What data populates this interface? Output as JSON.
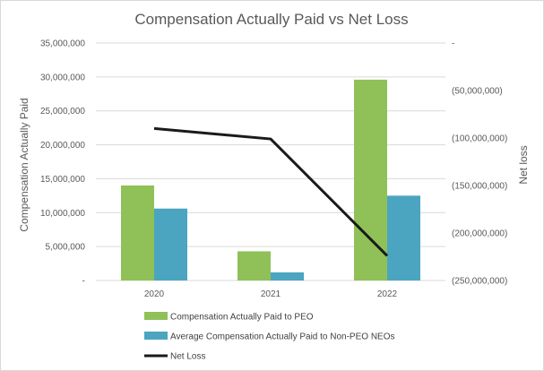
{
  "chart_data": {
    "type": "bar",
    "title": "Compensation Actually Paid vs Net Loss",
    "categories": [
      "2020",
      "2021",
      "2022"
    ],
    "series": [
      {
        "name": "Compensation Actually Paid to PEO",
        "axis": "left",
        "kind": "bar",
        "color": "#8fc158",
        "values": [
          14000000,
          4300000,
          29600000
        ]
      },
      {
        "name": "Average Compensation Actually Paid to Non-PEO NEOs",
        "axis": "left",
        "kind": "bar",
        "color": "#4ba5c0",
        "values": [
          10600000,
          1200000,
          12500000
        ]
      },
      {
        "name": "Net Loss",
        "axis": "right",
        "kind": "line",
        "color": "#1a1a1a",
        "values": [
          -90000000,
          -101000000,
          -224000000
        ]
      }
    ],
    "left_axis": {
      "label": "Compensation Actually Paid",
      "min": 0,
      "max": 35000000,
      "step": 5000000,
      "tick_labels": [
        "-",
        "5,000,000",
        "10,000,000",
        "15,000,000",
        "20,000,000",
        "25,000,000",
        "30,000,000",
        "35,000,000"
      ]
    },
    "right_axis": {
      "label": "Net loss",
      "min": -250000000,
      "max": 0,
      "step": 50000000,
      "tick_labels": [
        "(250,000,000)",
        "(200,000,000)",
        "(150,000,000)",
        "(100,000,000)",
        "(50,000,000)",
        "-"
      ]
    },
    "grid": true,
    "legend_position": "bottom"
  }
}
